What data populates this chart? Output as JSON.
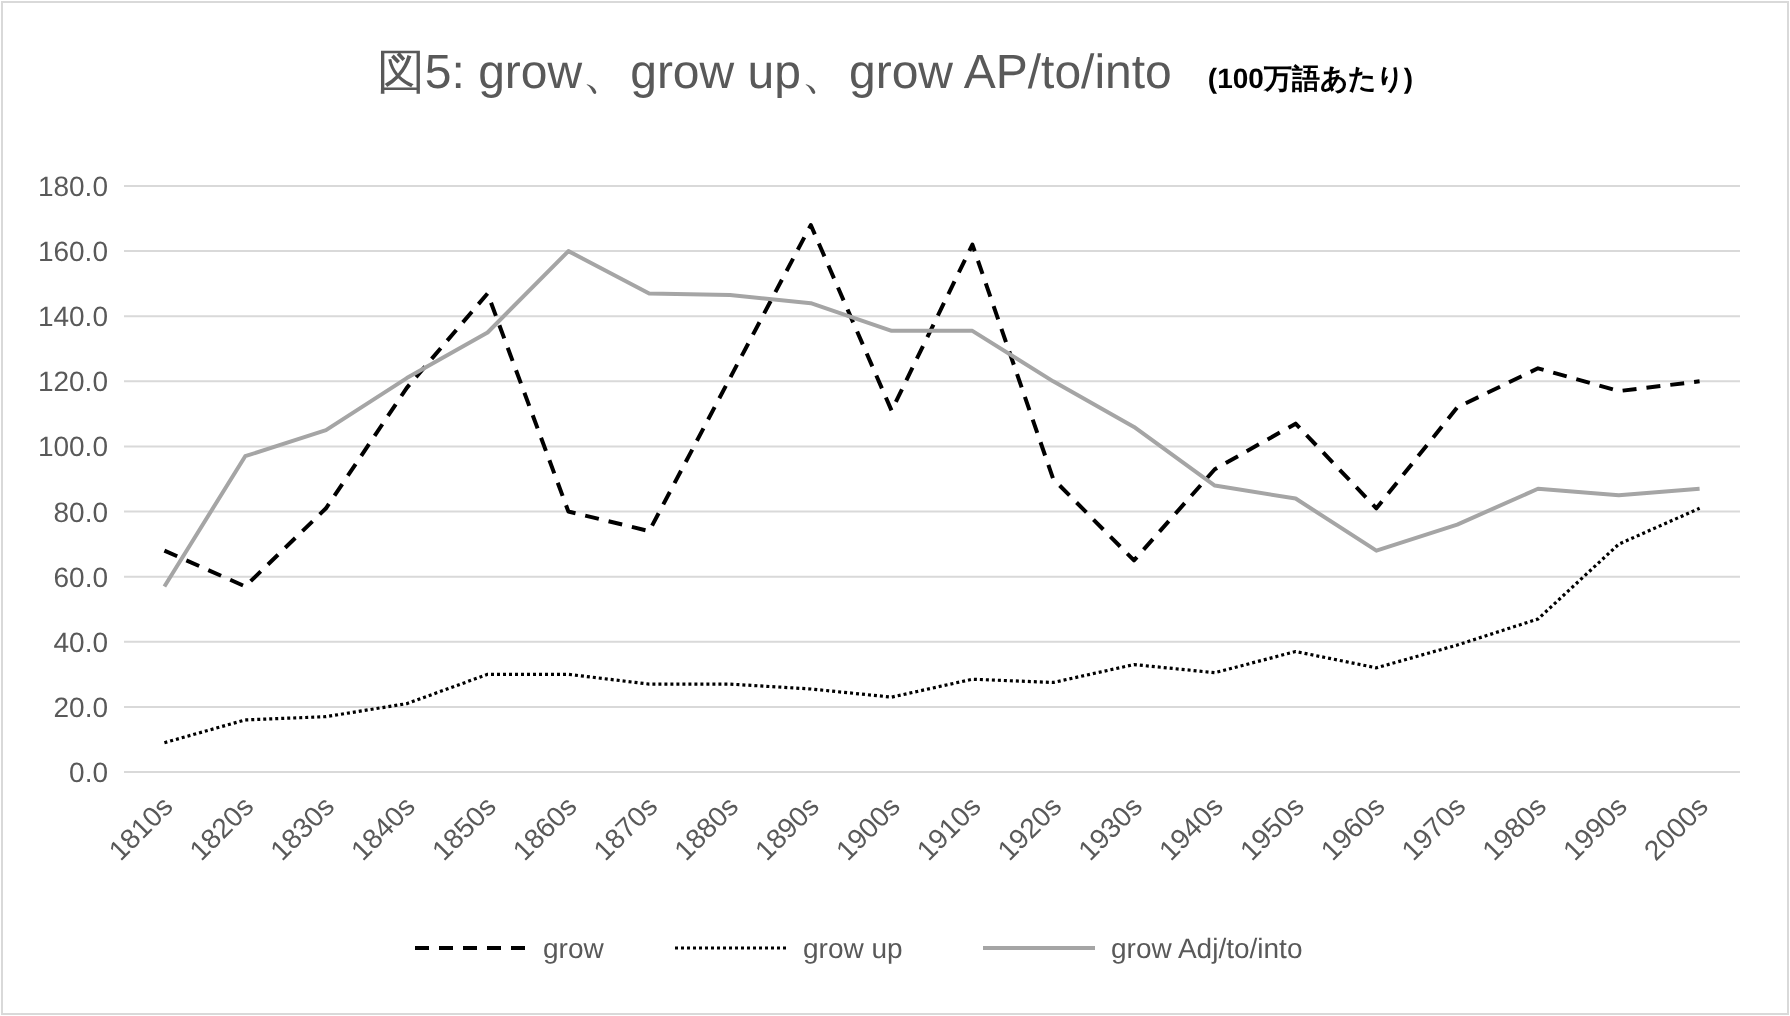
{
  "chart_data": {
    "type": "line",
    "title": "図5: grow、grow up、grow AP/to/into",
    "subtitle": "(100万語あたり)",
    "categories": [
      "1810s",
      "1820s",
      "1830s",
      "1840s",
      "1850s",
      "1860s",
      "1870s",
      "1880s",
      "1890s",
      "1900s",
      "1910s",
      "1920s",
      "1930s",
      "1940s",
      "1950s",
      "1960s",
      "1970s",
      "1980s",
      "1990s",
      "2000s"
    ],
    "series": [
      {
        "name": "grow",
        "color": "#000000",
        "line_style": "dashed",
        "values": [
          68,
          57,
          81,
          118,
          147,
          80,
          74,
          121,
          168,
          111,
          162,
          90,
          65,
          93,
          107,
          81,
          112,
          124,
          117,
          120
        ]
      },
      {
        "name": "grow up",
        "color": "#000000",
        "line_style": "dotted",
        "values": [
          9,
          16,
          17,
          21,
          30,
          30,
          27,
          27,
          25.5,
          23,
          28.5,
          27.5,
          33,
          30.5,
          37,
          32,
          39,
          47,
          70,
          81
        ]
      },
      {
        "name": "grow Adj/to/into",
        "color": "#a5a5a5",
        "line_style": "solid",
        "values": [
          57,
          97,
          105,
          121,
          135,
          160,
          147,
          146.5,
          144,
          135.5,
          135.5,
          120,
          106,
          88,
          84,
          68,
          76,
          87,
          85,
          87
        ]
      }
    ],
    "ylim": [
      0,
      180
    ],
    "yticks": [
      {
        "value": 0,
        "label": "0.0"
      },
      {
        "value": 20,
        "label": "20.0"
      },
      {
        "value": 40,
        "label": "40.0"
      },
      {
        "value": 60,
        "label": "60.0"
      },
      {
        "value": 80,
        "label": "80.0"
      },
      {
        "value": 100,
        "label": "100.0"
      },
      {
        "value": 120,
        "label": "120.0"
      },
      {
        "value": 140,
        "label": "140.0"
      },
      {
        "value": 160,
        "label": "160.0"
      },
      {
        "value": 180,
        "label": "180.0"
      }
    ],
    "grid": "y",
    "legend": "bottom",
    "marker": "none"
  }
}
